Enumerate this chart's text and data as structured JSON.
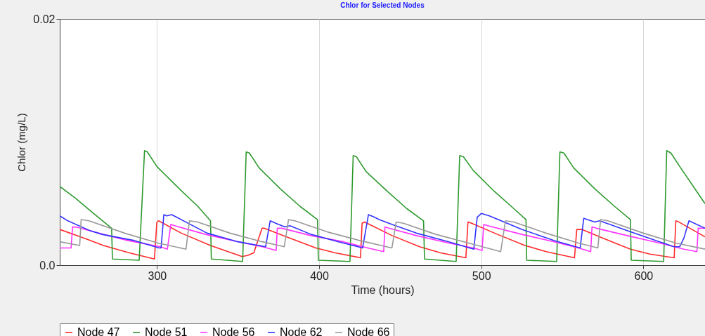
{
  "chart_data": {
    "type": "line",
    "title": "Chlor for Selected Nodes",
    "xlabel": "Time (hours)",
    "ylabel": "Chlor (mg/L)",
    "xlim": [
      240,
      638
    ],
    "xticks": [
      300,
      400,
      500,
      600
    ],
    "ylim": [
      0,
      0.02
    ],
    "yticks": [
      {
        "value": 0,
        "label": "0.0"
      },
      0.02
    ],
    "grid": "x",
    "legend": "bottom",
    "line_style": "solid",
    "series": [
      {
        "name": "Node 47",
        "color": "#ff2a2a",
        "x": [
          240,
          255,
          267,
          283,
          298.4,
          299.9,
          301,
          315,
          333,
          352.5,
          356,
          359.7,
          364.8,
          366,
          380,
          398,
          410,
          425.5,
          426.5,
          428,
          445,
          462,
          475,
          490.5,
          491.8,
          494,
          510,
          527,
          540,
          557.5,
          558.9,
          562,
          575,
          592,
          604,
          619,
          620,
          622,
          638
        ],
        "values": [
          0.0029,
          0.0022,
          0.0016,
          0.001,
          0.0005,
          0.0035,
          0.0036,
          0.0026,
          0.0016,
          0.0007,
          0.0008,
          0.001,
          0.003,
          0.003,
          0.0023,
          0.0014,
          0.001,
          0.0006,
          0.0034,
          0.0035,
          0.0024,
          0.0015,
          0.001,
          0.0006,
          0.0035,
          0.0034,
          0.0025,
          0.0016,
          0.0011,
          0.0006,
          0.0029,
          0.0029,
          0.0022,
          0.0013,
          0.0009,
          0.0006,
          0.0036,
          0.0035,
          0.0023
        ]
      },
      {
        "name": "Node 51",
        "color": "#2e9a2e",
        "x": [
          240,
          250,
          260,
          272,
          272.5,
          289,
          292.3,
          294,
          300,
          313,
          325,
          333,
          333.5,
          352.8,
          355,
          357,
          363,
          376,
          388,
          399,
          399.5,
          419,
          421,
          423,
          429,
          442,
          454,
          464.4,
          465,
          484.5,
          486.7,
          489,
          495,
          508,
          520,
          527.6,
          528,
          546.5,
          548.5,
          551,
          557,
          570,
          582,
          592,
          592.5,
          612.5,
          614.4,
          617,
          623,
          638
        ],
        "values": [
          0.0064,
          0.0054,
          0.0043,
          0.003,
          0.0005,
          0.0004,
          0.0093,
          0.0092,
          0.008,
          0.0063,
          0.0048,
          0.0036,
          0.0005,
          0.0003,
          0.0092,
          0.0091,
          0.0079,
          0.0062,
          0.0048,
          0.0037,
          0.0004,
          0.0003,
          0.0089,
          0.0088,
          0.0076,
          0.006,
          0.0046,
          0.0036,
          0.0005,
          0.0003,
          0.0089,
          0.0088,
          0.0077,
          0.006,
          0.0046,
          0.0037,
          0.0004,
          0.0003,
          0.0092,
          0.0091,
          0.0079,
          0.0062,
          0.0048,
          0.0037,
          0.0004,
          0.0003,
          0.0093,
          0.0091,
          0.0079,
          0.005
        ]
      },
      {
        "name": "Node 56",
        "color": "#ff33ff",
        "x": [
          240,
          247,
          247.9,
          250,
          267,
          282,
          302,
          306.4,
          308.5,
          311,
          330,
          350,
          365,
          373.5,
          374.2,
          377,
          395,
          415,
          430,
          439.8,
          440.6,
          443,
          460,
          480,
          495,
          500.5,
          501.5,
          504,
          525,
          545,
          560,
          567.5,
          568.3,
          571,
          590,
          610,
          625,
          633,
          633.8,
          638
        ],
        "values": [
          0.0014,
          0.0014,
          0.0031,
          0.0031,
          0.0025,
          0.002,
          0.0015,
          0.0013,
          0.0033,
          0.0032,
          0.0025,
          0.0019,
          0.0015,
          0.0012,
          0.003,
          0.003,
          0.0024,
          0.0019,
          0.0014,
          0.0011,
          0.0031,
          0.003,
          0.0024,
          0.0018,
          0.0014,
          0.0012,
          0.0033,
          0.0032,
          0.0025,
          0.0019,
          0.0014,
          0.0011,
          0.0031,
          0.003,
          0.0024,
          0.0018,
          0.0013,
          0.0011,
          0.003,
          0.003
        ]
      },
      {
        "name": "Node 62",
        "color": "#3333ff",
        "x": [
          240,
          245,
          258.7,
          266,
          286,
          301.3,
          302.5,
          304.2,
          306,
          309,
          312,
          330.9,
          350,
          367,
          369.8,
          375,
          379,
          382,
          395,
          412,
          426.8,
          430.4,
          434,
          437,
          445,
          460,
          480,
          495.4,
          497.5,
          500,
          505,
          525,
          545,
          561,
          563.2,
          570,
          573,
          590,
          610,
          619,
          622.4,
          625,
          628.1,
          638
        ],
        "values": [
          0.004,
          0.0036,
          0.0028,
          0.0025,
          0.002,
          0.0014,
          0.0014,
          0.0041,
          0.004,
          0.0041,
          0.0039,
          0.0026,
          0.0019,
          0.0015,
          0.0036,
          0.0033,
          0.0031,
          0.0032,
          0.0025,
          0.0019,
          0.0014,
          0.0041,
          0.0039,
          0.0037,
          0.0033,
          0.0026,
          0.0019,
          0.0013,
          0.0039,
          0.0042,
          0.004,
          0.0029,
          0.002,
          0.0014,
          0.0038,
          0.0035,
          0.0036,
          0.0028,
          0.0019,
          0.0015,
          0.0015,
          0.0022,
          0.0036,
          0.003
        ]
      },
      {
        "name": "Node 66",
        "color": "#999999",
        "x": [
          240,
          252.3,
          253.2,
          258,
          280,
          300.6,
          317.9,
          320,
          325,
          345,
          365,
          378.5,
          381.1,
          385,
          405,
          425,
          444.9,
          447.5,
          452,
          472,
          495,
          512,
          514.9,
          520,
          540,
          560,
          571.9,
          573.6,
          578,
          600,
          620,
          638
        ],
        "values": [
          0.0019,
          0.0016,
          0.0037,
          0.0036,
          0.0026,
          0.0018,
          0.0013,
          0.0036,
          0.0035,
          0.0026,
          0.0019,
          0.0015,
          0.0037,
          0.0036,
          0.0027,
          0.002,
          0.0014,
          0.0035,
          0.0034,
          0.0025,
          0.0017,
          0.0011,
          0.0036,
          0.0035,
          0.0026,
          0.0018,
          0.0014,
          0.0037,
          0.0036,
          0.0026,
          0.0018,
          0.0013
        ]
      }
    ]
  }
}
